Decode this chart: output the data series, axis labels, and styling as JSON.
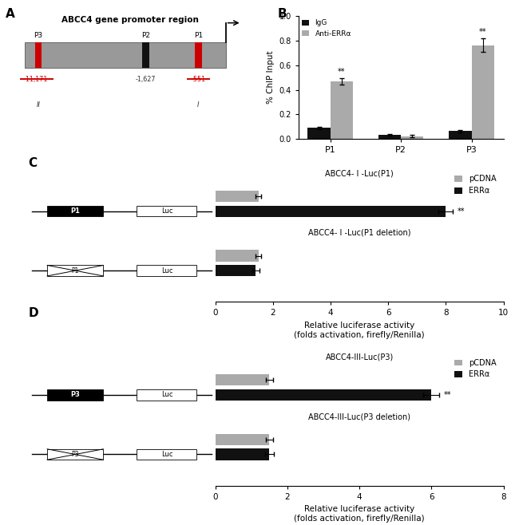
{
  "panel_A": {
    "title": "ABCC4 gene promoter region",
    "p3_color": "#cc0000",
    "p2_color": "#111111",
    "p1_color": "#cc0000",
    "bar_color": "#999999"
  },
  "panel_B": {
    "categories": [
      "P1",
      "P2",
      "P3"
    ],
    "IgG_values": [
      0.09,
      0.035,
      0.065
    ],
    "IgG_errors": [
      0.008,
      0.004,
      0.008
    ],
    "Anti_values": [
      0.47,
      0.025,
      0.76
    ],
    "Anti_errors": [
      0.025,
      0.008,
      0.055
    ],
    "ylabel": "% ChIP Input",
    "ylim": [
      0,
      1.0
    ],
    "yticks": [
      0.0,
      0.2,
      0.4,
      0.6,
      0.8,
      1.0
    ],
    "IgG_color": "#111111",
    "Anti_color": "#aaaaaa",
    "legend_IgG": "IgG",
    "legend_Anti": "Anti-ERRα"
  },
  "panel_C": {
    "constructs": [
      "ABCC4- I -Luc(P1)",
      "ABCC4- I -Luc(P1 deletion)"
    ],
    "construct_labels": [
      "P1",
      "P1"
    ],
    "pCDNA_values": [
      1.5,
      1.5
    ],
    "ERRa_values": [
      8.0,
      1.4
    ],
    "pCDNA_errors": [
      0.1,
      0.1
    ],
    "ERRa_errors": [
      0.25,
      0.12
    ],
    "xlabel": "Relative luciferase activity\n(folds activation, firefly/Renilla)",
    "xlim": [
      0,
      10
    ],
    "xticks": [
      0,
      2,
      4,
      6,
      8,
      10
    ],
    "pCDNA_color": "#aaaaaa",
    "ERRa_color": "#111111",
    "legend_pCDNA": "pCDNA",
    "legend_ERRa": "ERRα"
  },
  "panel_D": {
    "constructs": [
      "ABCC4-III-Luc(P3)",
      "ABCC4-III-Luc(P3 deletion)"
    ],
    "construct_labels": [
      "P3",
      "P3"
    ],
    "pCDNA_values": [
      1.5,
      1.5
    ],
    "ERRa_values": [
      6.0,
      1.5
    ],
    "pCDNA_errors": [
      0.1,
      0.1
    ],
    "ERRa_errors": [
      0.22,
      0.13
    ],
    "xlabel": "Relative luciferase activity\n(folds activation, firefly/Renilla)",
    "xlim": [
      0,
      8
    ],
    "xticks": [
      0,
      2,
      4,
      6,
      8
    ],
    "pCDNA_color": "#aaaaaa",
    "ERRa_color": "#111111",
    "legend_pCDNA": "pCDNA",
    "legend_ERRa": "ERRα"
  },
  "background_color": "#ffffff"
}
